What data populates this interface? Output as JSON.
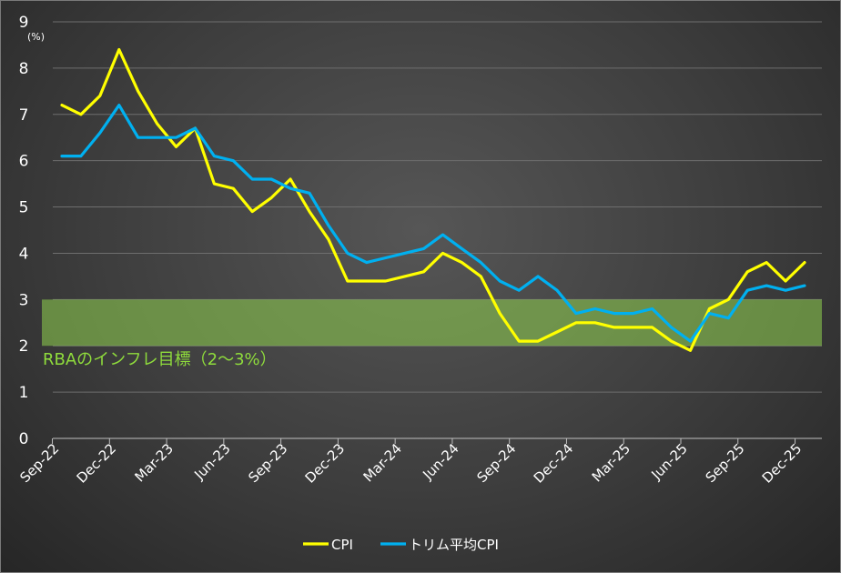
{
  "chart_data": {
    "type": "line",
    "y_unit": "(%)",
    "ylim": [
      0,
      9
    ],
    "y_ticks": [
      0,
      1,
      2,
      3,
      4,
      5,
      6,
      7,
      8,
      9
    ],
    "grid": true,
    "legend_position": "bottom",
    "x_tick_labels": [
      "Sep-22",
      "Dec-22",
      "Mar-23",
      "Jun-23",
      "Sep-23",
      "Dec-23",
      "Mar-24",
      "Jun-24",
      "Sep-24",
      "Dec-24",
      "Mar-25",
      "Jun-25",
      "Sep-25",
      "Dec-25"
    ],
    "band": {
      "low": 2,
      "high": 3,
      "label": "RBAのインフレ目標（2～3%）",
      "color": "#8fd14f"
    },
    "x": [
      "Sep-22",
      "Oct-22",
      "Nov-22",
      "Dec-22",
      "Jan-23",
      "Feb-23",
      "Mar-23",
      "Apr-23",
      "May-23",
      "Jun-23",
      "Jul-23",
      "Aug-23",
      "Sep-23",
      "Oct-23",
      "Nov-23",
      "Dec-23",
      "Jan-24",
      "Feb-24",
      "Mar-24",
      "Apr-24",
      "May-24",
      "Jun-24",
      "Jul-24",
      "Aug-24",
      "Sep-24",
      "Oct-24",
      "Nov-24",
      "Dec-24",
      "Jan-25",
      "Feb-25",
      "Mar-25",
      "Apr-25",
      "May-25",
      "Jun-25",
      "Jul-25",
      "Aug-25",
      "Sep-25",
      "Oct-25",
      "Nov-25",
      "Dec-25"
    ],
    "series": [
      {
        "name": "CPI",
        "color": "#ffff00",
        "values": [
          7.2,
          7.0,
          7.4,
          8.4,
          7.5,
          6.8,
          6.3,
          6.7,
          5.5,
          5.4,
          4.9,
          5.2,
          5.6,
          4.9,
          4.3,
          3.4,
          3.4,
          3.4,
          3.5,
          3.6,
          4.0,
          3.8,
          3.5,
          2.7,
          2.1,
          2.1,
          2.3,
          2.5,
          2.5,
          2.4,
          2.4,
          2.4,
          2.1,
          1.9,
          2.8,
          3.0,
          3.6,
          3.8,
          3.4,
          3.8
        ]
      },
      {
        "name": "トリム平均CPI",
        "color": "#00b0f0",
        "values": [
          6.1,
          6.1,
          6.6,
          7.2,
          6.5,
          6.5,
          6.5,
          6.7,
          6.1,
          6.0,
          5.6,
          5.6,
          5.4,
          5.3,
          4.6,
          4.0,
          3.8,
          3.9,
          4.0,
          4.1,
          4.4,
          4.1,
          3.8,
          3.4,
          3.2,
          3.5,
          3.2,
          2.7,
          2.8,
          2.7,
          2.7,
          2.8,
          2.4,
          2.1,
          2.7,
          2.6,
          3.2,
          3.3,
          3.2,
          3.3
        ]
      }
    ]
  }
}
